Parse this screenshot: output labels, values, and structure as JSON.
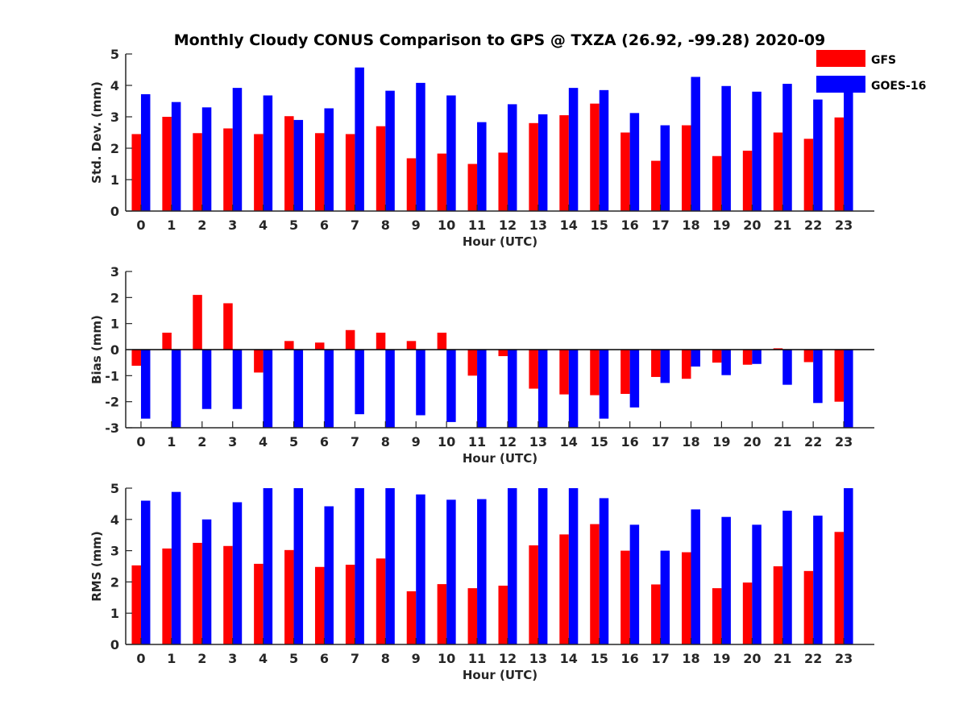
{
  "figure": {
    "title": "Monthly Cloudy CONUS Comparison to GPS @ TXZA (26.92, -99.28) 2020-09"
  },
  "legend": {
    "placement": "top-right",
    "entries": [
      {
        "label": "GFS",
        "color": "#ff0000"
      },
      {
        "label": "GOES-16",
        "color": "#0000ff"
      }
    ]
  },
  "chart_data": [
    {
      "type": "bar",
      "panel": "std-dev",
      "xlabel": "Hour (UTC)",
      "ylabel": "Std. Dev. (mm)",
      "ylim": [
        0,
        5
      ],
      "yticks": [
        0,
        1,
        2,
        3,
        4,
        5
      ],
      "grid": false,
      "categories": [
        "0",
        "1",
        "2",
        "3",
        "4",
        "5",
        "6",
        "7",
        "8",
        "9",
        "10",
        "11",
        "12",
        "13",
        "14",
        "15",
        "16",
        "17",
        "18",
        "19",
        "20",
        "21",
        "22",
        "23"
      ],
      "series": [
        {
          "name": "GFS",
          "color": "#ff0000",
          "values": [
            2.45,
            3.0,
            2.48,
            2.63,
            2.45,
            3.02,
            2.48,
            2.45,
            2.7,
            1.68,
            1.83,
            1.5,
            1.86,
            2.8,
            3.05,
            3.42,
            2.5,
            1.6,
            2.73,
            1.75,
            1.92,
            2.5,
            2.3,
            2.98
          ]
        },
        {
          "name": "GOES-16",
          "color": "#0000ff",
          "values": [
            3.72,
            3.47,
            3.3,
            3.92,
            3.68,
            2.9,
            3.27,
            4.57,
            3.83,
            4.08,
            3.68,
            2.83,
            3.4,
            3.08,
            3.92,
            3.85,
            3.12,
            2.73,
            4.27,
            3.98,
            3.8,
            4.05,
            3.55,
            3.9
          ]
        }
      ]
    },
    {
      "type": "bar",
      "panel": "bias",
      "xlabel": "Hour (UTC)",
      "ylabel": "Bias (mm)",
      "ylim": [
        -3,
        3
      ],
      "yticks": [
        -3,
        -2,
        -1,
        0,
        1,
        2,
        3
      ],
      "grid": false,
      "zero_line": true,
      "categories": [
        "0",
        "1",
        "2",
        "3",
        "4",
        "5",
        "6",
        "7",
        "8",
        "9",
        "10",
        "11",
        "12",
        "13",
        "14",
        "15",
        "16",
        "17",
        "18",
        "19",
        "20",
        "21",
        "22",
        "23"
      ],
      "series": [
        {
          "name": "GFS",
          "color": "#ff0000",
          "values": [
            -0.62,
            0.65,
            2.1,
            1.78,
            -0.88,
            0.33,
            0.27,
            0.75,
            0.65,
            0.33,
            0.65,
            -1.0,
            -0.25,
            -1.5,
            -1.72,
            -1.75,
            -1.7,
            -1.05,
            -1.12,
            -0.5,
            -0.58,
            0.05,
            -0.48,
            -2.0
          ]
        },
        {
          "name": "GOES-16",
          "color": "#0000ff",
          "values": [
            -2.65,
            -3.0,
            -2.28,
            -2.28,
            -3.0,
            -3.0,
            -3.0,
            -2.48,
            -3.0,
            -2.52,
            -2.78,
            -3.0,
            -3.0,
            -3.0,
            -3.0,
            -2.65,
            -2.22,
            -1.28,
            -0.65,
            -0.98,
            -0.55,
            -1.35,
            -2.05,
            -3.0
          ]
        }
      ]
    },
    {
      "type": "bar",
      "panel": "rms",
      "xlabel": "Hour (UTC)",
      "ylabel": "RMS (mm)",
      "ylim": [
        0,
        5
      ],
      "yticks": [
        0,
        1,
        2,
        3,
        4,
        5
      ],
      "grid": false,
      "categories": [
        "0",
        "1",
        "2",
        "3",
        "4",
        "5",
        "6",
        "7",
        "8",
        "9",
        "10",
        "11",
        "12",
        "13",
        "14",
        "15",
        "16",
        "17",
        "18",
        "19",
        "20",
        "21",
        "22",
        "23"
      ],
      "series": [
        {
          "name": "GFS",
          "color": "#ff0000",
          "values": [
            2.53,
            3.07,
            3.25,
            3.15,
            2.58,
            3.02,
            2.48,
            2.55,
            2.75,
            1.7,
            1.93,
            1.8,
            1.88,
            3.17,
            3.52,
            3.85,
            3.0,
            1.92,
            2.95,
            1.8,
            1.98,
            2.5,
            2.35,
            3.6
          ]
        },
        {
          "name": "GOES-16",
          "color": "#0000ff",
          "values": [
            4.6,
            4.88,
            4.0,
            4.55,
            5.0,
            5.0,
            4.42,
            5.0,
            5.0,
            4.8,
            4.63,
            4.65,
            5.0,
            5.0,
            5.0,
            4.68,
            3.83,
            3.0,
            4.32,
            4.08,
            3.83,
            4.28,
            4.12,
            5.0
          ]
        }
      ]
    }
  ]
}
